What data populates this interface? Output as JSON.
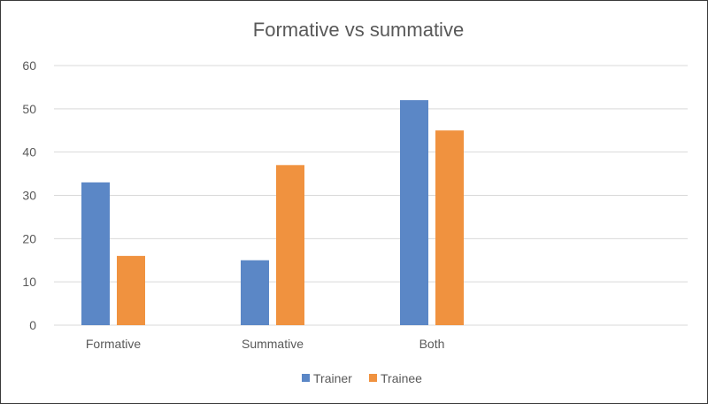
{
  "chart_data": {
    "type": "bar",
    "title": "Formative vs summative",
    "xlabel": "",
    "ylabel": "",
    "categories": [
      "Formative",
      "Summative",
      "Both"
    ],
    "series": [
      {
        "name": "Trainer",
        "values": [
          33,
          15,
          52
        ],
        "color": "#5b87c6"
      },
      {
        "name": "Trainee",
        "values": [
          16,
          37,
          45
        ],
        "color": "#f0923f"
      }
    ],
    "ylim": [
      0,
      60
    ],
    "yticks": [
      "0",
      "10",
      "20",
      "30",
      "40",
      "50",
      "60"
    ],
    "grid": true,
    "legend_position": "bottom"
  }
}
